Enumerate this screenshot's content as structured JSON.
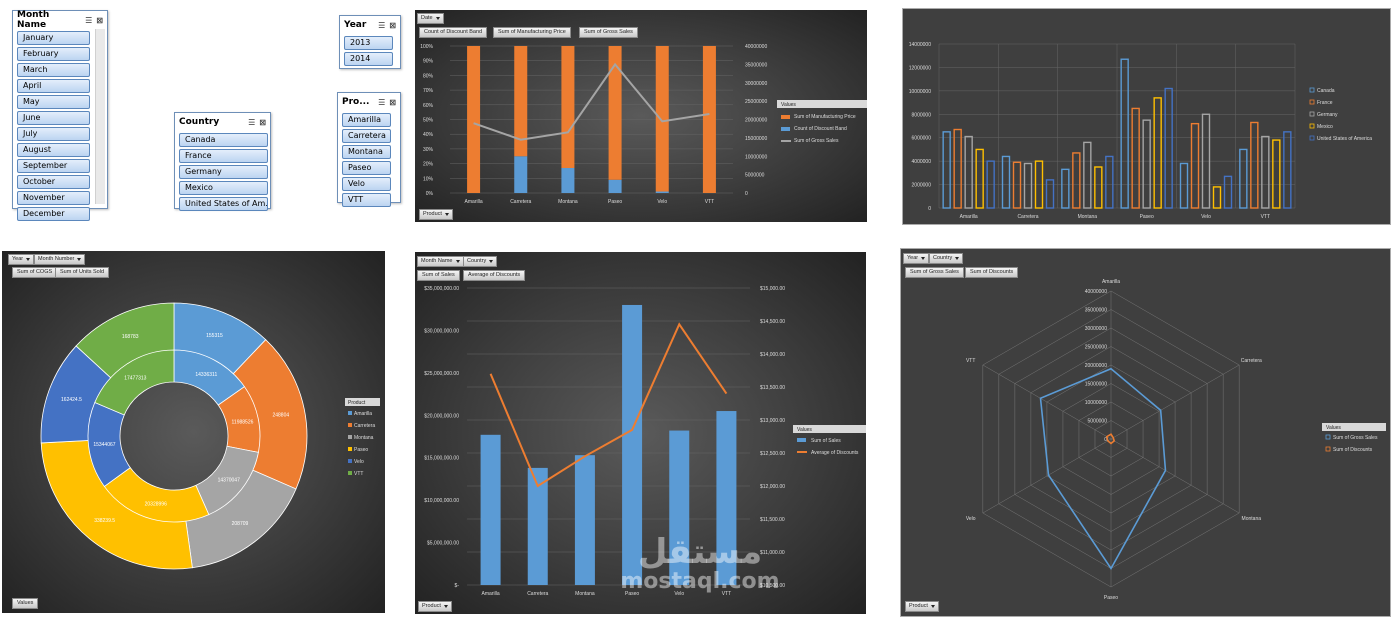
{
  "slicers": {
    "month": {
      "title": "Month Name",
      "items": [
        "January",
        "February",
        "March",
        "April",
        "May",
        "June",
        "July",
        "August",
        "September",
        "October",
        "November",
        "December"
      ]
    },
    "country": {
      "title": "Country",
      "items": [
        "Canada",
        "France",
        "Germany",
        "Mexico",
        "United States of Am..."
      ]
    },
    "year": {
      "title": "Year",
      "items": [
        "2013",
        "2014"
      ]
    },
    "product": {
      "title": "Pro...",
      "items": [
        "Amarilla",
        "Carretera",
        "Montana",
        "Paseo",
        "Velo",
        "VTT"
      ]
    }
  },
  "chart1": {
    "filter_btn": "Date",
    "value_btns": [
      "Count of Discount Band",
      "Sum of Manufacturing Price",
      "Sum of Gross Sales"
    ],
    "axis_btn": "Product",
    "legend_title": "Values",
    "colors": {
      "mfg": "#ed7d31",
      "disc": "#5b9bd5",
      "gross": "#a5a5a5"
    }
  },
  "chart3": {
    "filter_btns": [
      "Year",
      "Month Number"
    ],
    "value_btns": [
      "Sum of COGS",
      "Sum of Units Sold"
    ],
    "values_btn": "Values",
    "legend_title": "Product",
    "inner_labels": [
      "14336311",
      "11988526",
      "14370047",
      "20328996",
      "15344067",
      "17477313"
    ],
    "outer_labels": [
      "155315",
      "248804",
      "208709",
      "338239.5",
      "162424.5",
      "168783"
    ]
  },
  "chart4": {
    "filter_btns": [
      "Month Name",
      "Country"
    ],
    "value_btns": [
      "Sum of Sales",
      "Average of Discounts"
    ],
    "axis_btn": "Product",
    "legend_title": "Values"
  },
  "chart6": {
    "filter_btns": [
      "Year",
      "Country"
    ],
    "value_btns": [
      "Sum of Gross Sales",
      "Sum of Discounts"
    ],
    "axis_btn": "Product",
    "legend_title": "Values"
  },
  "watermark": {
    "arabic": "مستقل",
    "latin": "mostaql.com"
  },
  "chart_data": [
    {
      "type": "bar",
      "categories": [
        "Amarilla",
        "Carretera",
        "Montana",
        "Paseo",
        "Velo",
        "VTT"
      ],
      "series": [
        {
          "name": "Sum of Manufacturing Price",
          "values": [
            1.0,
            0.75,
            0.83,
            0.91,
            0.99,
            1.0
          ],
          "note_unit": "percent stacked share"
        },
        {
          "name": "Count of Discount Band",
          "values": [
            0.0,
            0.25,
            0.17,
            0.09,
            0.01,
            0.0
          ]
        },
        {
          "name": "Sum of Gross Sales",
          "type": "line",
          "axis": "secondary",
          "values": [
            19000000,
            14500000,
            16500000,
            35000000,
            19500000,
            21500000
          ]
        }
      ],
      "y_ticks": [
        "0%",
        "10%",
        "20%",
        "30%",
        "40%",
        "50%",
        "60%",
        "70%",
        "80%",
        "90%",
        "100%"
      ],
      "y2_ticks": [
        "0",
        "5000000",
        "10000000",
        "15000000",
        "20000000",
        "25000000",
        "30000000",
        "35000000",
        "40000000"
      ],
      "ylim": [
        0,
        1
      ],
      "y2lim": [
        0,
        40000000
      ]
    },
    {
      "type": "bar",
      "categories": [
        "Amarilla",
        "Carretera",
        "Montana",
        "Paseo",
        "Velo",
        "VTT"
      ],
      "series": [
        {
          "name": "Canada",
          "color": "#5b9bd5",
          "values": [
            6500000,
            4400000,
            3300000,
            12700000,
            3800000,
            5000000
          ]
        },
        {
          "name": "France",
          "color": "#ed7d31",
          "values": [
            6700000,
            3900000,
            4700000,
            8500000,
            7200000,
            7300000
          ]
        },
        {
          "name": "Germany",
          "color": "#a5a5a5",
          "values": [
            6100000,
            3800000,
            5600000,
            7500000,
            8000000,
            6100000
          ]
        },
        {
          "name": "Mexico",
          "color": "#ffc000",
          "values": [
            5000000,
            4000000,
            3500000,
            9400000,
            1800000,
            5800000
          ]
        },
        {
          "name": "United States of America",
          "color": "#4472c4",
          "values": [
            4000000,
            2400000,
            4400000,
            10200000,
            2700000,
            6500000
          ]
        }
      ],
      "y_ticks": [
        "0",
        "2000000",
        "4000000",
        "6000000",
        "8000000",
        "10000000",
        "12000000",
        "14000000"
      ],
      "ylim": [
        0,
        14000000
      ]
    },
    {
      "type": "pie",
      "categories": [
        "Amarilla",
        "Carretera",
        "Montana",
        "Paseo",
        "Velo",
        "VTT"
      ],
      "colors": [
        "#5b9bd5",
        "#ed7d31",
        "#a5a5a5",
        "#ffc000",
        "#4472c4",
        "#70ad47"
      ],
      "series": [
        {
          "name": "Sum of COGS",
          "values": [
            14336311,
            11988526,
            14370047,
            20328996,
            15344067,
            17477313
          ]
        },
        {
          "name": "Sum of Units Sold",
          "values": [
            155315,
            248804,
            208709,
            338239.5,
            162424.5,
            168783
          ]
        }
      ]
    },
    {
      "type": "bar",
      "categories": [
        "Amarilla",
        "Carretera",
        "Montana",
        "Paseo",
        "Velo",
        "VTT"
      ],
      "series": [
        {
          "name": "Sum of Sales",
          "values": [
            17700000,
            13800000,
            15300000,
            33000000,
            18200000,
            20500000
          ]
        },
        {
          "name": "Average of Discounts",
          "type": "line",
          "axis": "secondary",
          "values": [
            13700,
            12000,
            12450,
            12850,
            14450,
            13400
          ]
        }
      ],
      "y_ticks": [
        "$-",
        "$5,000,000.00",
        "$10,000,000.00",
        "$15,000,000.00",
        "$20,000,000.00",
        "$25,000,000.00",
        "$30,000,000.00",
        "$35,000,000.00"
      ],
      "y2_ticks": [
        "$10,500.00",
        "$11,000.00",
        "$11,500.00",
        "$12,000.00",
        "$12,500.00",
        "$13,000.00",
        "$13,500.00",
        "$14,000.00",
        "$14,500.00",
        "$15,000.00"
      ],
      "ylim": [
        0,
        35000000
      ],
      "y2lim": [
        10500,
        15000
      ]
    },
    {
      "type": "radar",
      "categories": [
        "Amarilla",
        "Carretera",
        "Montana",
        "Paseo",
        "Velo",
        "VTT"
      ],
      "series": [
        {
          "name": "Sum of Gross Sales",
          "values": [
            19000000,
            15500000,
            17000000,
            35000000,
            19500000,
            22000000
          ]
        },
        {
          "name": "Sum of Discounts",
          "values": [
            1300000,
            700000,
            1000000,
            1200000,
            1000000,
            1300000
          ]
        }
      ],
      "r_ticks": [
        "0",
        "5000000",
        "10000000",
        "15000000",
        "20000000",
        "25000000",
        "30000000",
        "35000000",
        "40000000"
      ],
      "rlim": [
        0,
        40000000
      ]
    }
  ]
}
